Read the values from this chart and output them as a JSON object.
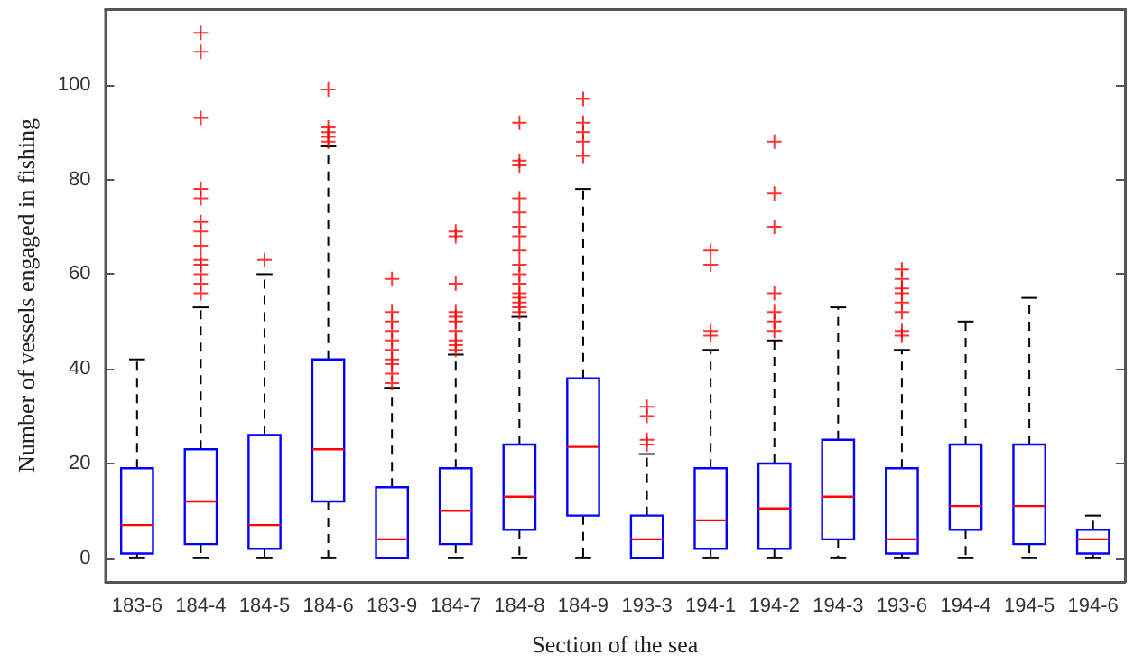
{
  "chart_data": {
    "type": "box",
    "xlabel": "Section of the sea",
    "ylabel": "Number of vessels engaged in fishing",
    "categories": [
      "183-6",
      "184-4",
      "184-5",
      "184-6",
      "183-9",
      "184-7",
      "184-8",
      "184-9",
      "193-3",
      "194-1",
      "194-2",
      "194-3",
      "193-6",
      "194-4",
      "194-5",
      "194-6"
    ],
    "color": "#0000ff",
    "ylim": [
      -5,
      116
    ],
    "yticks": [
      0,
      20,
      40,
      60,
      80,
      100
    ],
    "grid": false,
    "marker": "cross",
    "boxes": [
      {
        "low": 0,
        "q1": 1,
        "median": 7,
        "q3": 19,
        "high": 42
      },
      {
        "low": 0,
        "q1": 3,
        "median": 12,
        "q3": 23,
        "high": 53,
        "outliers": [
          56,
          58,
          60,
          62,
          63,
          66,
          69,
          71,
          76,
          78,
          93,
          107,
          111
        ]
      },
      {
        "low": 0,
        "q1": 2,
        "median": 7,
        "q3": 26,
        "high": 60,
        "outliers": [
          63
        ]
      },
      {
        "low": 0,
        "q1": 12,
        "median": 23,
        "q3": 42,
        "high": 87,
        "outliers": [
          88,
          89,
          90,
          91,
          99
        ]
      },
      {
        "low": 0,
        "q1": 0,
        "median": 4,
        "q3": 15,
        "high": 36,
        "outliers": [
          37,
          39,
          41,
          42,
          44,
          46,
          48,
          50,
          52,
          59
        ]
      },
      {
        "low": 0,
        "q1": 3,
        "median": 10,
        "q3": 19,
        "high": 43,
        "outliers": [
          44,
          45,
          46,
          48,
          50,
          51,
          52,
          58,
          68,
          69
        ]
      },
      {
        "low": 0,
        "q1": 6,
        "median": 13,
        "q3": 24,
        "high": 51,
        "outliers": [
          52,
          53,
          54,
          55,
          56,
          58,
          60,
          62,
          65,
          68,
          70,
          73,
          76,
          83,
          84,
          92
        ]
      },
      {
        "low": 0,
        "q1": 9,
        "median": 23.5,
        "q3": 38,
        "high": 78,
        "outliers": [
          85,
          88,
          90,
          92,
          97
        ]
      },
      {
        "low": 0,
        "q1": 0,
        "median": 4,
        "q3": 9,
        "high": 22,
        "outliers": [
          24,
          25,
          30,
          32
        ]
      },
      {
        "low": 0,
        "q1": 2,
        "median": 8,
        "q3": 19,
        "high": 44,
        "outliers": [
          47,
          48,
          62,
          65
        ]
      },
      {
        "low": 0,
        "q1": 2,
        "median": 10.5,
        "q3": 20,
        "high": 46,
        "outliers": [
          48,
          50,
          52,
          56,
          70,
          77,
          88
        ]
      },
      {
        "low": 0,
        "q1": 4,
        "median": 13,
        "q3": 25,
        "high": 53
      },
      {
        "low": 0,
        "q1": 1,
        "median": 4,
        "q3": 19,
        "high": 44,
        "outliers": [
          47,
          48,
          52,
          54,
          56,
          57,
          59,
          61
        ]
      },
      {
        "low": 0,
        "q1": 6,
        "median": 11,
        "q3": 24,
        "high": 50
      },
      {
        "low": 0,
        "q1": 3,
        "median": 11,
        "q3": 24,
        "high": 55
      },
      {
        "low": 0,
        "q1": 1,
        "median": 4,
        "q3": 6,
        "high": 9
      }
    ]
  }
}
